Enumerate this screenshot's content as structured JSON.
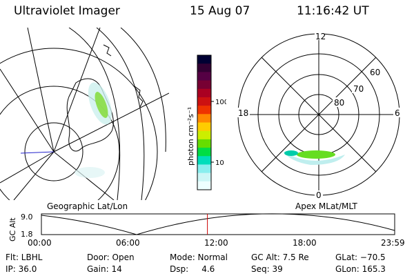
{
  "header": {
    "title": "Ultraviolet Imager",
    "date": "15 Aug 07",
    "time": "11:16:42 UT"
  },
  "colorbar": {
    "unit_label": "photon cm⁻²s⁻¹",
    "ticks": [
      "100",
      "10"
    ],
    "colors": [
      "#000033",
      "#330033",
      "#550044",
      "#770033",
      "#aa0022",
      "#cc1111",
      "#ee3300",
      "#ff8800",
      "#ffcc00",
      "#ccee00",
      "#66dd00",
      "#00dd44",
      "#00ddbb",
      "#88eeee",
      "#ccf6f6",
      "#eeffff"
    ]
  },
  "polar": {
    "labels": {
      "top": "12",
      "bottom": "0",
      "left": "18",
      "right": "6"
    },
    "rings": [
      "60",
      "70",
      "80"
    ]
  },
  "timeline": {
    "left_label": "Geographic Lat/Lon",
    "right_label": "Apex MLat/MLT",
    "axis_title": "GC Alt",
    "y_ticks": [
      "9.0",
      "1.8"
    ],
    "x_ticks": [
      "00:00",
      "06:00",
      "12:00",
      "18:00",
      "23:59"
    ],
    "current_time_fraction": 0.47,
    "cursor_color": "#cc0000"
  },
  "status": {
    "flt": "Flt: LBHL",
    "ip": "IP: 36.0",
    "door": "Door: Open",
    "gain": "Gain: 14",
    "mode": "Mode: Normal",
    "dsp": "Dsp:     4.6",
    "gcalt": "GC Alt: 7.5 Re",
    "seq": "Seq: 39",
    "glat": "GLat: −70.5",
    "glon": "GLon: 165.3"
  }
}
